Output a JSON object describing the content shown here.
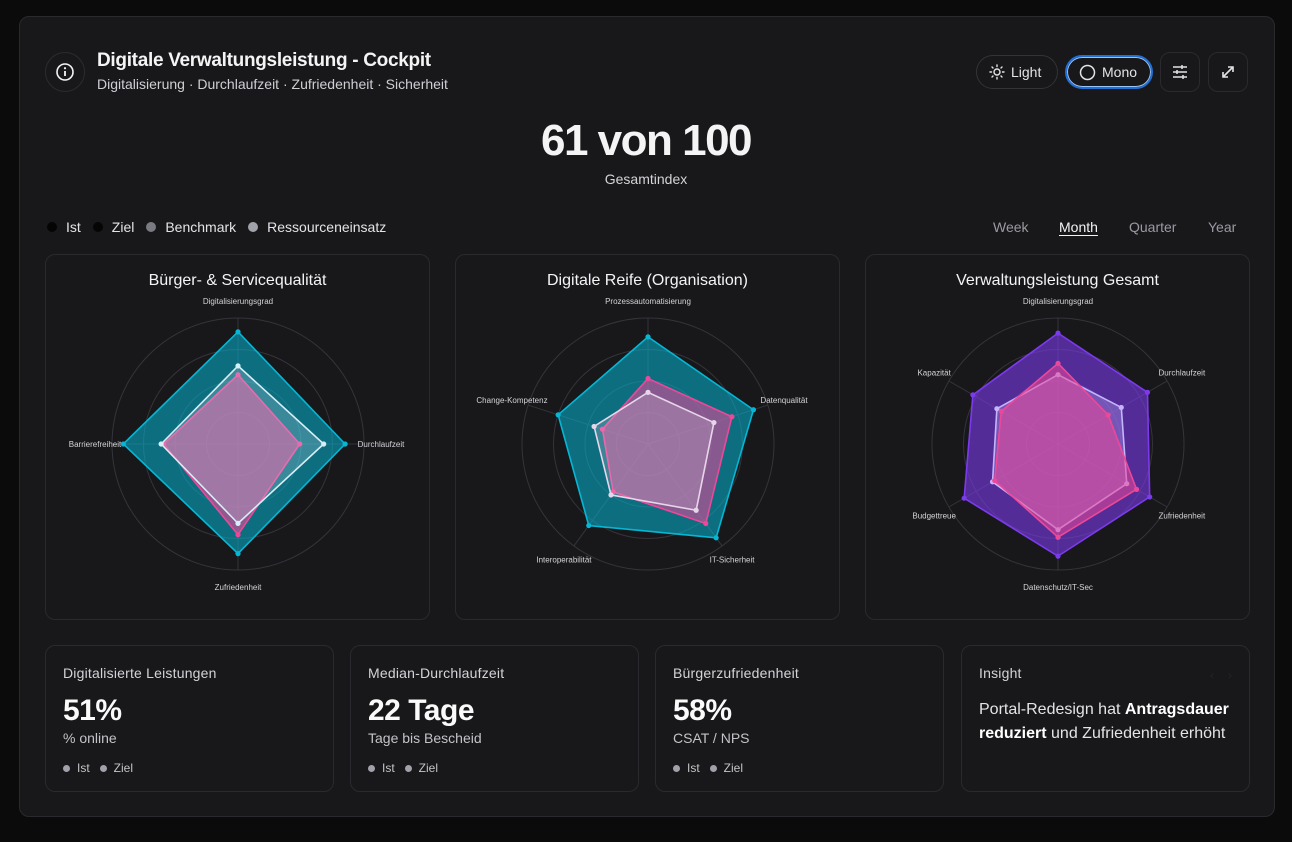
{
  "header": {
    "title": "Digitale Verwaltungsleistung - Cockpit",
    "subtitle": "Digitalisierung · Durchlaufzeit · Zufriedenheit · Sicherheit",
    "light_label": "Light",
    "mono_label": "Mono"
  },
  "score": {
    "value": "61 von 100",
    "label": "Gesamtindex"
  },
  "legend": [
    {
      "label": "Ist",
      "color": "#0a0a0a"
    },
    {
      "label": "Ziel",
      "color": "#0a0a0a"
    },
    {
      "label": "Benchmark",
      "color": "#7a7a82"
    },
    {
      "label": "Ressourceneinsatz",
      "color": "#a1a1aa"
    }
  ],
  "tabs": [
    {
      "label": "Week",
      "active": false
    },
    {
      "label": "Month",
      "active": true
    },
    {
      "label": "Quarter",
      "active": false
    },
    {
      "label": "Year",
      "active": false
    }
  ],
  "chart_data": [
    {
      "type": "radar",
      "title": "Bürger- & Servicequalität",
      "axes": [
        "Digitalisierungsgrad",
        "Durchlaufzeit",
        "Zufriedenheit",
        "Barrierefreiheit"
      ],
      "range": [
        0,
        100
      ],
      "rings": 4,
      "series": [
        {
          "name": "Ziel",
          "color": "#06b6d4",
          "fill_opacity": 0.55,
          "values": [
            89,
            85,
            87,
            91
          ]
        },
        {
          "name": "Ist",
          "color": "#ec4899",
          "fill_opacity": 0.6,
          "values": [
            55,
            49,
            72,
            59
          ]
        },
        {
          "name": "Benchmark",
          "color": "#d6eef5",
          "fill_opacity": 0.22,
          "values": [
            62,
            68,
            63,
            61
          ]
        }
      ]
    },
    {
      "type": "radar",
      "title": "Digitale Reife (Organisation)",
      "axes": [
        "Prozessautomatisierung",
        "Datenqualität",
        "IT-Sicherheit",
        "Interoperabilität",
        "Change-Kompetenz"
      ],
      "range": [
        0,
        100
      ],
      "rings": 4,
      "series": [
        {
          "name": "Ziel",
          "color": "#06b6d4",
          "fill_opacity": 0.55,
          "values": [
            85,
            88,
            92,
            80,
            75
          ]
        },
        {
          "name": "Ist",
          "color": "#ec4899",
          "fill_opacity": 0.55,
          "values": [
            52,
            70,
            78,
            47,
            38
          ]
        },
        {
          "name": "Benchmark",
          "color": "#e7d6ea",
          "fill_opacity": 0.22,
          "values": [
            41,
            55,
            65,
            50,
            45
          ]
        }
      ]
    },
    {
      "type": "radar",
      "title": "Verwaltungsleistung Gesamt",
      "axes": [
        "Digitalisierungsgrad",
        "Durchlaufzeit",
        "Zufriedenheit",
        "Datenschutz/IT-Sec",
        "Budgettreue",
        "Kapazität"
      ],
      "range": [
        0,
        100
      ],
      "rings": 4,
      "series": [
        {
          "name": "Ziel",
          "color": "#7c3aed",
          "fill_opacity": 0.6,
          "values": [
            88,
            82,
            84,
            89,
            86,
            78
          ]
        },
        {
          "name": "Benchmark",
          "color": "#c4b5fd",
          "fill_opacity": 0.3,
          "values": [
            55,
            58,
            63,
            68,
            60,
            56
          ]
        },
        {
          "name": "Ist",
          "color": "#ec4899",
          "fill_opacity": 0.55,
          "values": [
            64,
            46,
            72,
            74,
            58,
            52
          ]
        }
      ]
    }
  ],
  "kpis": [
    {
      "title": "Digitalisierte Leistungen",
      "value": "51%",
      "sub": "% online",
      "legend": [
        "Ist",
        "Ziel"
      ]
    },
    {
      "title": "Median-Durchlaufzeit",
      "value": "22 Tage",
      "sub": "Tage bis Bescheid",
      "legend": [
        "Ist",
        "Ziel"
      ]
    },
    {
      "title": "Bürgerzufriedenheit",
      "value": "58%",
      "sub": "CSAT / NPS",
      "legend": [
        "Ist",
        "Ziel"
      ]
    }
  ],
  "insight": {
    "title": "Insight",
    "text_before": "Portal-Redesign hat ",
    "text_bold": "Antragsdauer reduziert",
    "text_after": " und Zufriedenheit erhöht"
  }
}
